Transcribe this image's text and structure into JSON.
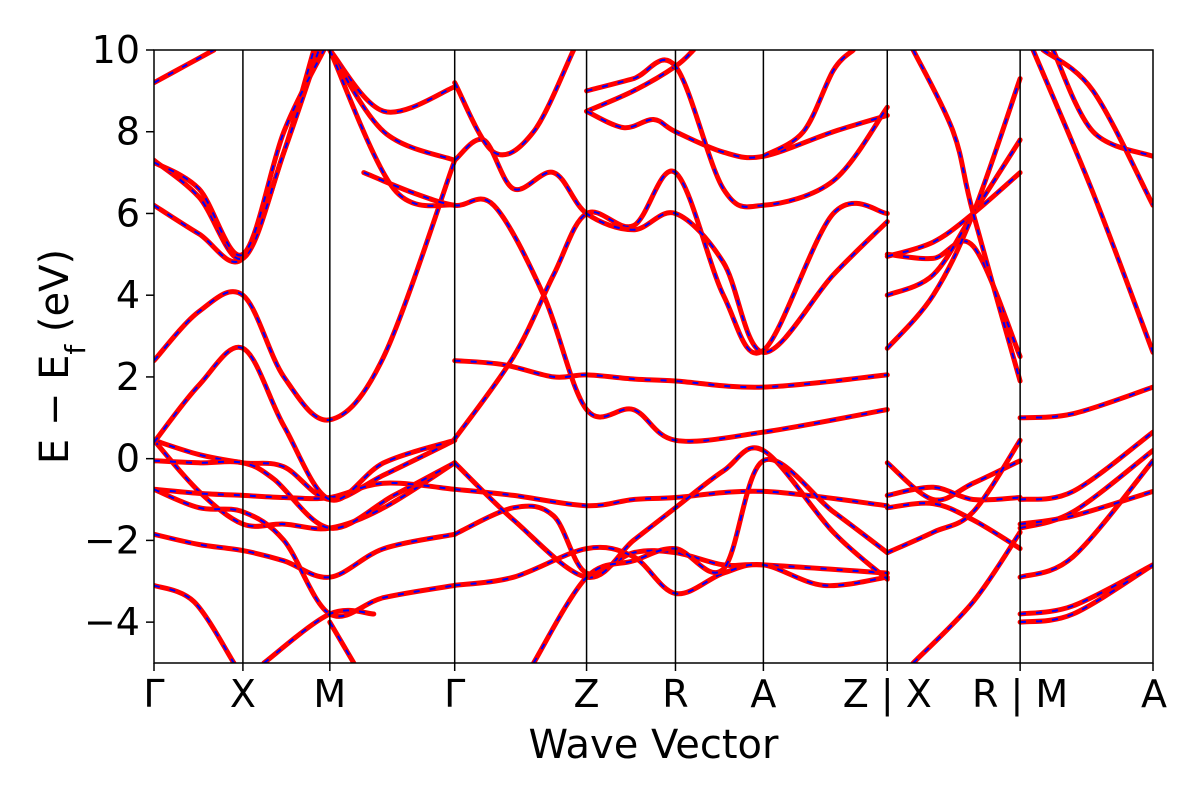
{
  "chart_data": {
    "type": "line",
    "title": "",
    "xlabel": "Wave Vector",
    "ylabel": "E − E",
    "ylabel_subscript": "f",
    "ylabel_unit": " (eV)",
    "ylim": [
      -5,
      10
    ],
    "yticks": [
      {
        "value": 10,
        "label": "10"
      },
      {
        "value": 8,
        "label": "8"
      },
      {
        "value": 6,
        "label": "6"
      },
      {
        "value": 4,
        "label": "4"
      },
      {
        "value": 2,
        "label": "2"
      },
      {
        "value": 0,
        "label": "0"
      },
      {
        "value": -2,
        "label": "−2"
      },
      {
        "value": -4,
        "label": "−4"
      }
    ],
    "xlim": [
      0,
      1000
    ],
    "kpoints": [
      {
        "x": 0,
        "label": "Γ"
      },
      {
        "x": 89,
        "label": "X"
      },
      {
        "x": 176,
        "label": "M"
      },
      {
        "x": 301,
        "label": "Γ"
      },
      {
        "x": 433,
        "label": "Z"
      },
      {
        "x": 522,
        "label": "R"
      },
      {
        "x": 610,
        "label": "A"
      },
      {
        "x": 734,
        "label": "Z | X"
      },
      {
        "x": 867,
        "label": "R | M"
      },
      {
        "x": 1000,
        "label": "A"
      }
    ],
    "series_colors": {
      "primary": "#ff0000",
      "overlay": "#0000ff"
    },
    "grid": false,
    "legend": "none",
    "bands": [
      [
        [
          0,
          0.45
        ],
        [
          45,
          0.1
        ],
        [
          89,
          -0.1
        ],
        [
          130,
          -0.2
        ],
        [
          176,
          -1.0
        ],
        [
          230,
          -0.4
        ],
        [
          301,
          0.45
        ]
      ],
      [
        [
          0,
          0.45
        ],
        [
          45,
          -0.8
        ],
        [
          89,
          -1.6
        ],
        [
          130,
          -1.6
        ],
        [
          176,
          -1.7
        ],
        [
          230,
          -1.2
        ],
        [
          301,
          -0.1
        ]
      ],
      [
        [
          0,
          -0.05
        ],
        [
          45,
          -0.1
        ],
        [
          89,
          -0.1
        ],
        [
          120,
          -0.5
        ],
        [
          176,
          -1.7
        ],
        [
          240,
          -0.9
        ],
        [
          301,
          -0.1
        ]
      ],
      [
        [
          0,
          -0.75
        ],
        [
          45,
          -0.85
        ],
        [
          89,
          -0.9
        ],
        [
          130,
          -0.95
        ],
        [
          176,
          -0.95
        ],
        [
          230,
          -0.6
        ],
        [
          301,
          -0.75
        ]
      ],
      [
        [
          0,
          -1.85
        ],
        [
          45,
          -2.1
        ],
        [
          89,
          -2.25
        ],
        [
          130,
          -2.5
        ],
        [
          176,
          -2.9
        ],
        [
          230,
          -2.2
        ],
        [
          301,
          -1.85
        ]
      ],
      [
        [
          0,
          -0.75
        ],
        [
          45,
          -1.2
        ],
        [
          89,
          -1.3
        ],
        [
          130,
          -2.0
        ],
        [
          176,
          -3.8
        ],
        [
          230,
          -3.4
        ],
        [
          301,
          -3.1
        ]
      ],
      [
        [
          0,
          -3.1
        ],
        [
          40,
          -3.5
        ],
        [
          80,
          -5.0
        ]
      ],
      [
        [
          0,
          2.4
        ],
        [
          45,
          3.6
        ],
        [
          89,
          4.0
        ],
        [
          130,
          2.0
        ],
        [
          176,
          0.95
        ],
        [
          230,
          2.5
        ],
        [
          301,
          7.3
        ]
      ],
      [
        [
          0,
          0.4
        ],
        [
          45,
          1.8
        ],
        [
          89,
          2.7
        ],
        [
          130,
          0.8
        ],
        [
          176,
          -1.0
        ],
        [
          230,
          -0.1
        ],
        [
          301,
          0.45
        ]
      ],
      [
        [
          0,
          6.2
        ],
        [
          45,
          5.5
        ],
        [
          89,
          4.9
        ],
        [
          130,
          7.5
        ],
        [
          160,
          10.0
        ]
      ],
      [
        [
          0,
          7.3
        ],
        [
          45,
          6.4
        ],
        [
          89,
          4.9
        ],
        [
          130,
          7.5
        ],
        [
          165,
          10.0
        ]
      ],
      [
        [
          0,
          7.25
        ],
        [
          45,
          6.6
        ],
        [
          89,
          5.0
        ],
        [
          130,
          8.0
        ],
        [
          170,
          10.0
        ]
      ],
      [
        [
          0,
          9.2
        ],
        [
          30,
          9.6
        ],
        [
          60,
          10.0
        ]
      ],
      [
        [
          110,
          -5.0
        ],
        [
          176,
          -3.8
        ],
        [
          220,
          -3.8
        ]
      ],
      [
        [
          176,
          -4.0
        ],
        [
          200,
          -5.0
        ]
      ],
      [
        [
          176,
          10.0
        ],
        [
          230,
          8.5
        ],
        [
          301,
          9.1
        ]
      ],
      [
        [
          176,
          10.0
        ],
        [
          230,
          8.0
        ],
        [
          301,
          7.3
        ]
      ],
      [
        [
          176,
          10.0
        ],
        [
          240,
          6.6
        ],
        [
          301,
          6.2
        ]
      ],
      [
        [
          210,
          7.0
        ],
        [
          260,
          6.5
        ],
        [
          301,
          6.2
        ],
        [
          340,
          6.2
        ],
        [
          390,
          4.0
        ],
        [
          433,
          1.2
        ],
        [
          480,
          1.2
        ],
        [
          522,
          0.45
        ],
        [
          610,
          0.65
        ],
        [
          734,
          1.2
        ]
      ],
      [
        [
          301,
          2.4
        ],
        [
          350,
          2.3
        ],
        [
          400,
          2.0
        ],
        [
          433,
          2.05
        ],
        [
          480,
          1.95
        ],
        [
          522,
          1.9
        ],
        [
          610,
          1.75
        ],
        [
          734,
          2.05
        ]
      ],
      [
        [
          301,
          -0.75
        ],
        [
          360,
          -0.9
        ],
        [
          433,
          -1.15
        ],
        [
          480,
          -1.0
        ],
        [
          522,
          -0.95
        ],
        [
          610,
          -0.8
        ],
        [
          734,
          -1.15
        ]
      ],
      [
        [
          301,
          -1.85
        ],
        [
          360,
          -1.2
        ],
        [
          400,
          -1.4
        ],
        [
          433,
          -2.8
        ],
        [
          480,
          -2.3
        ],
        [
          522,
          -2.3
        ],
        [
          570,
          -2.6
        ],
        [
          610,
          -2.6
        ],
        [
          734,
          -2.8
        ]
      ],
      [
        [
          301,
          -3.1
        ],
        [
          360,
          -2.9
        ],
        [
          433,
          -2.2
        ],
        [
          480,
          -2.4
        ],
        [
          522,
          -3.3
        ],
        [
          570,
          -2.8
        ],
        [
          610,
          -2.6
        ],
        [
          670,
          -3.1
        ],
        [
          734,
          -2.9
        ]
      ],
      [
        [
          301,
          -0.1
        ],
        [
          360,
          -1.5
        ],
        [
          433,
          -2.9
        ],
        [
          480,
          -2.0
        ],
        [
          522,
          -1.2
        ],
        [
          570,
          -0.3
        ],
        [
          610,
          0.2
        ],
        [
          680,
          -1.8
        ],
        [
          734,
          -2.95
        ]
      ],
      [
        [
          300,
          0.45
        ],
        [
          360,
          2.5
        ],
        [
          400,
          4.5
        ],
        [
          433,
          6.0
        ],
        [
          480,
          5.7
        ],
        [
          522,
          7.0
        ],
        [
          570,
          4.0
        ],
        [
          610,
          2.65
        ],
        [
          680,
          6.0
        ],
        [
          734,
          6.0
        ]
      ],
      [
        [
          301,
          7.3
        ],
        [
          330,
          7.8
        ],
        [
          360,
          6.6
        ],
        [
          400,
          7.0
        ],
        [
          433,
          6.0
        ],
        [
          480,
          5.6
        ],
        [
          522,
          6.0
        ],
        [
          570,
          4.8
        ],
        [
          610,
          2.6
        ],
        [
          680,
          4.5
        ],
        [
          734,
          5.8
        ]
      ],
      [
        [
          301,
          9.2
        ],
        [
          340,
          7.5
        ],
        [
          380,
          8.0
        ],
        [
          420,
          10.0
        ]
      ],
      [
        [
          380,
          -5.0
        ],
        [
          433,
          -2.9
        ],
        [
          480,
          -2.5
        ],
        [
          522,
          -2.2
        ],
        [
          570,
          -2.7
        ],
        [
          610,
          -0.05
        ],
        [
          680,
          -1.3
        ],
        [
          734,
          -2.3
        ]
      ],
      [
        [
          433,
          8.5
        ],
        [
          480,
          9.0
        ],
        [
          522,
          9.6
        ],
        [
          540,
          10.0
        ]
      ],
      [
        [
          433,
          8.5
        ],
        [
          470,
          8.1
        ],
        [
          500,
          8.3
        ],
        [
          522,
          8.0
        ],
        [
          570,
          7.5
        ],
        [
          610,
          7.4
        ],
        [
          680,
          8.0
        ],
        [
          734,
          8.4
        ]
      ],
      [
        [
          433,
          9.0
        ],
        [
          480,
          9.3
        ],
        [
          522,
          9.6
        ],
        [
          570,
          6.6
        ],
        [
          610,
          6.2
        ],
        [
          680,
          6.8
        ],
        [
          734,
          8.6
        ]
      ],
      [
        [
          610,
          7.4
        ],
        [
          650,
          8.0
        ],
        [
          680,
          9.5
        ],
        [
          700,
          10.0
        ]
      ],
      [
        [
          734,
          5.0
        ],
        [
          780,
          4.9
        ],
        [
          820,
          5.2
        ],
        [
          867,
          2.5
        ]
      ],
      [
        [
          734,
          4.95
        ],
        [
          780,
          5.3
        ],
        [
          820,
          6.0
        ],
        [
          867,
          7.0
        ]
      ],
      [
        [
          734,
          4.0
        ],
        [
          780,
          4.5
        ],
        [
          820,
          6.0
        ],
        [
          867,
          7.8
        ]
      ],
      [
        [
          734,
          2.7
        ],
        [
          780,
          4.0
        ],
        [
          820,
          6.0
        ],
        [
          867,
          9.3
        ]
      ],
      [
        [
          734,
          -0.1
        ],
        [
          780,
          -1.0
        ],
        [
          820,
          -0.6
        ],
        [
          867,
          -0.05
        ]
      ],
      [
        [
          734,
          -0.9
        ],
        [
          780,
          -0.7
        ],
        [
          820,
          -1.0
        ],
        [
          867,
          -0.95
        ]
      ],
      [
        [
          734,
          -1.2
        ],
        [
          780,
          -1.1
        ],
        [
          820,
          -1.5
        ],
        [
          867,
          -2.2
        ]
      ],
      [
        [
          734,
          -2.3
        ],
        [
          780,
          -1.8
        ],
        [
          820,
          -1.3
        ],
        [
          867,
          0.45
        ]
      ],
      [
        [
          760,
          -5.0
        ],
        [
          820,
          -3.5
        ],
        [
          867,
          -1.8
        ]
      ],
      [
        [
          760,
          10.0
        ],
        [
          800,
          8.0
        ],
        [
          820,
          6.0
        ],
        [
          867,
          1.9
        ]
      ],
      [
        [
          867,
          1.0
        ],
        [
          920,
          1.1
        ],
        [
          1000,
          1.75
        ]
      ],
      [
        [
          867,
          -1.0
        ],
        [
          920,
          -0.8
        ],
        [
          1000,
          0.65
        ]
      ],
      [
        [
          867,
          -1.7
        ],
        [
          920,
          -1.3
        ],
        [
          1000,
          0.2
        ]
      ],
      [
        [
          867,
          -2.9
        ],
        [
          920,
          -2.4
        ],
        [
          1000,
          -0.05
        ]
      ],
      [
        [
          867,
          -1.6
        ],
        [
          920,
          -1.4
        ],
        [
          1000,
          -0.8
        ]
      ],
      [
        [
          867,
          -3.8
        ],
        [
          920,
          -3.6
        ],
        [
          1000,
          -2.6
        ]
      ],
      [
        [
          867,
          -4.0
        ],
        [
          920,
          -3.8
        ],
        [
          1000,
          -2.6
        ]
      ],
      [
        [
          900,
          10.0
        ],
        [
          940,
          8.0
        ],
        [
          1000,
          7.4
        ]
      ],
      [
        [
          890,
          10.0
        ],
        [
          940,
          9.0
        ],
        [
          1000,
          6.2
        ]
      ],
      [
        [
          880,
          10.0
        ],
        [
          940,
          6.5
        ],
        [
          1000,
          2.6
        ]
      ]
    ]
  }
}
